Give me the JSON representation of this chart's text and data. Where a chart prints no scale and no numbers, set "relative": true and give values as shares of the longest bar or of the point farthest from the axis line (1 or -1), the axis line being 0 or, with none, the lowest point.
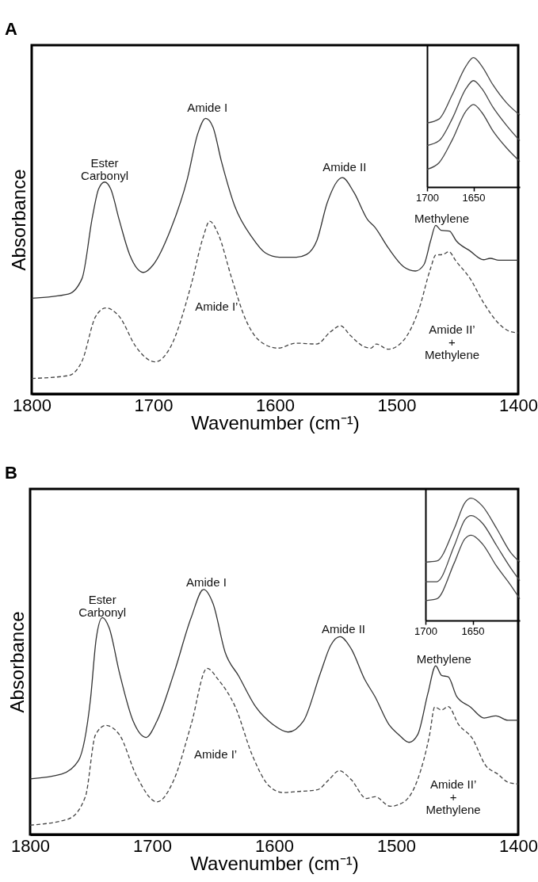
{
  "chart_data": [
    {
      "type": "line",
      "title": "A",
      "xlabel": "Wavenumber (cm⁻¹)",
      "ylabel": "Absorbance",
      "relative": true,
      "xlim": [
        1800,
        1400
      ],
      "xticks": [
        1800,
        1700,
        1600,
        1500,
        1400
      ],
      "grid": false,
      "series": [
        {
          "color": "#333333",
          "line_style": "solid",
          "x": [
            1800,
            1770,
            1758.6,
            1750,
            1745,
            1740,
            1735,
            1728,
            1719.5,
            1708,
            1700,
            1686,
            1672,
            1663.5,
            1657,
            1651,
            1644,
            1633,
            1619,
            1608,
            1596.4,
            1582.4,
            1574,
            1565.6,
            1557,
            1544.6,
            1535,
            1523.6,
            1518,
            1507,
            1494.3,
            1484.5,
            1477.5,
            1472,
            1467.8,
            1463.5,
            1456.5,
            1451,
            1439.6,
            1428.5,
            1423,
            1416,
            1400
          ],
          "values": [
            0.347,
            0.362,
            0.419,
            0.644,
            0.744,
            0.769,
            0.744,
            0.631,
            0.506,
            0.441,
            0.469,
            0.594,
            0.781,
            0.944,
            1,
            0.969,
            0.844,
            0.681,
            0.569,
            0.512,
            0.496,
            0.496,
            0.506,
            0.556,
            0.694,
            0.785,
            0.731,
            0.631,
            0.606,
            0.531,
            0.462,
            0.446,
            0.469,
            0.556,
            0.612,
            0.594,
            0.591,
            0.556,
            0.519,
            0.487,
            0.492,
            0.485,
            0.485
          ]
        },
        {
          "color": "#444444",
          "line_style": "dashed",
          "x": [
            1800,
            1770,
            1758.6,
            1747.4,
            1739,
            1728,
            1714,
            1698.5,
            1686,
            1669,
            1659,
            1653.7,
            1646.7,
            1635.5,
            1624,
            1613,
            1597.8,
            1582.4,
            1565.6,
            1554.4,
            1546,
            1538,
            1526.5,
            1521,
            1516.7,
            1507,
            1494.3,
            1481.7,
            1472,
            1467.8,
            1462,
            1457,
            1451,
            1439.6,
            1428.5,
            1417.4,
            1409,
            1400
          ],
          "values": [
            0.056,
            0.066,
            0.119,
            0.281,
            0.312,
            0.281,
            0.169,
            0.116,
            0.169,
            0.394,
            0.569,
            0.627,
            0.581,
            0.419,
            0.269,
            0.194,
            0.166,
            0.184,
            0.181,
            0.225,
            0.247,
            0.212,
            0.171,
            0.166,
            0.181,
            0.162,
            0.194,
            0.306,
            0.456,
            0.504,
            0.506,
            0.516,
            0.481,
            0.419,
            0.331,
            0.262,
            0.231,
            0.221
          ]
        }
      ],
      "annotations": [
        "Ester\nCarbonyl",
        "Amide I",
        "Amide II",
        "Methylene",
        "Amide I’",
        "Amide II’\n+\nMethylene"
      ]
    },
    {
      "type": "line",
      "relative": true,
      "xlim": [
        1700,
        1600
      ],
      "xticks": [
        1700,
        1650
      ],
      "tick_labels": "x",
      "grid": false,
      "series": [
        {
          "color": "#444444",
          "x": [
            1700,
            1687,
            1673,
            1658,
            1650,
            1641,
            1629,
            1614,
            1600
          ],
          "values": [
            0.495,
            0.526,
            0.71,
            0.935,
            1,
            0.935,
            0.79,
            0.648,
            0.556
          ]
        },
        {
          "color": "#444444",
          "x": [
            1700,
            1687,
            1673,
            1658,
            1650,
            1641,
            1629,
            1614,
            1600
          ],
          "values": [
            0.321,
            0.358,
            0.526,
            0.761,
            0.822,
            0.761,
            0.618,
            0.474,
            0.358
          ]
        },
        {
          "color": "#444444",
          "x": [
            1700,
            1687,
            1673,
            1658,
            1650,
            1641,
            1629,
            1614,
            1600
          ],
          "values": [
            0.137,
            0.188,
            0.362,
            0.587,
            0.638,
            0.577,
            0.434,
            0.3,
            0.198
          ]
        }
      ]
    },
    {
      "type": "line",
      "title": "B",
      "xlabel": "Wavenumber (cm⁻¹)",
      "ylabel": "Absorbance",
      "relative": true,
      "xlim": [
        1800,
        1400
      ],
      "xticks": [
        1800,
        1700,
        1600,
        1500,
        1400
      ],
      "grid": false,
      "series": [
        {
          "color": "#333333",
          "line_style": "solid",
          "x": [
            1800,
            1774.3,
            1760.3,
            1750.6,
            1745.8,
            1740.8,
            1735.2,
            1726.8,
            1715.6,
            1705,
            1696,
            1682,
            1668,
            1657.8,
            1650,
            1640.2,
            1629,
            1615,
            1601,
            1588.6,
            1576,
            1562,
            1553.6,
            1546,
            1536.9,
            1525.7,
            1517.3,
            1506,
            1497.8,
            1489.4,
            1482.4,
            1474,
            1467.6,
            1462.8,
            1457.3,
            1450.3,
            1439.1,
            1427.9,
            1418.2,
            1408.4,
            1400
          ],
          "values": [
            0.227,
            0.246,
            0.302,
            0.548,
            0.8,
            0.885,
            0.843,
            0.66,
            0.463,
            0.396,
            0.463,
            0.66,
            0.885,
            1,
            0.941,
            0.744,
            0.646,
            0.52,
            0.449,
            0.418,
            0.463,
            0.66,
            0.772,
            0.807,
            0.758,
            0.632,
            0.562,
            0.449,
            0.407,
            0.376,
            0.407,
            0.576,
            0.688,
            0.649,
            0.643,
            0.562,
            0.52,
            0.475,
            0.484,
            0.466,
            0.466
          ]
        },
        {
          "color": "#444444",
          "line_style": "dashed",
          "x": [
            1800,
            1768.7,
            1754.7,
            1746.4,
            1738,
            1726.8,
            1712.8,
            1696,
            1682,
            1668,
            1655,
            1645.8,
            1631.8,
            1617.9,
            1604,
            1592.7,
            1581.6,
            1564.8,
            1555,
            1546.7,
            1536.9,
            1524.3,
            1517.3,
            1504.8,
            1493.6,
            1482.4,
            1472.6,
            1468.4,
            1462.8,
            1457.3,
            1448.9,
            1437.7,
            1426.6,
            1416.6,
            1408.4,
            1400
          ],
          "values": [
            0.038,
            0.063,
            0.154,
            0.407,
            0.445,
            0.407,
            0.239,
            0.133,
            0.225,
            0.449,
            0.678,
            0.632,
            0.52,
            0.323,
            0.197,
            0.171,
            0.175,
            0.182,
            0.224,
            0.26,
            0.224,
            0.147,
            0.154,
            0.115,
            0.133,
            0.224,
            0.407,
            0.52,
            0.508,
            0.522,
            0.449,
            0.393,
            0.281,
            0.246,
            0.213,
            0.206
          ]
        }
      ],
      "annotations": [
        "Ester\nCarbonyl",
        "Amide I",
        "Amide II",
        "Methylene",
        "Amide I’",
        "Amide II’\n+\nMethylene"
      ]
    },
    {
      "type": "line",
      "relative": true,
      "xlim": [
        1700,
        1600
      ],
      "xticks": [
        1700,
        1650
      ],
      "tick_labels": "x",
      "grid": false,
      "series": [
        {
          "color": "#444444",
          "x": [
            1700,
            1688,
            1669.4,
            1658.2,
            1651.5,
            1639.6,
            1624.6,
            1609.7,
            1600
          ],
          "values": [
            0.477,
            0.486,
            0.753,
            0.963,
            1,
            0.935,
            0.753,
            0.556,
            0.477
          ]
        },
        {
          "color": "#444444",
          "x": [
            1700,
            1688,
            1669.4,
            1658.2,
            1651.5,
            1639.6,
            1624.6,
            1609.7,
            1600
          ],
          "values": [
            0.317,
            0.317,
            0.612,
            0.823,
            0.857,
            0.795,
            0.612,
            0.43,
            0.326
          ]
        },
        {
          "color": "#444444",
          "x": [
            1700,
            1688,
            1669.4,
            1658.2,
            1651.5,
            1639.6,
            1624.6,
            1609.7,
            1600
          ],
          "values": [
            0.163,
            0.177,
            0.472,
            0.668,
            0.697,
            0.626,
            0.444,
            0.289,
            0.177
          ]
        }
      ]
    }
  ]
}
